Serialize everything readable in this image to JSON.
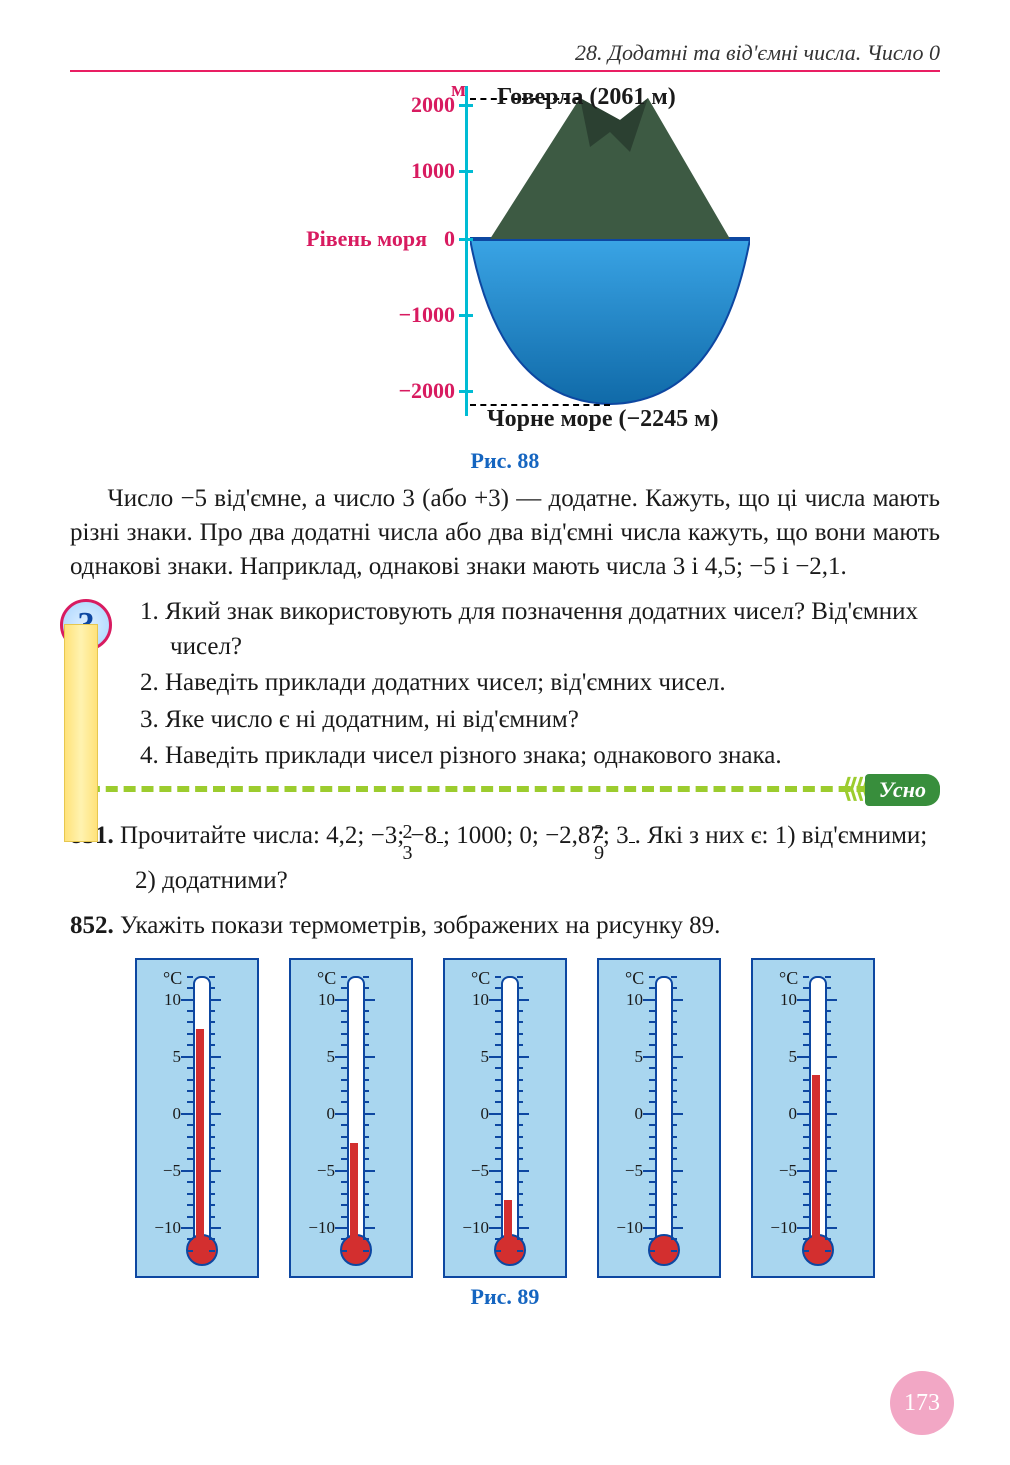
{
  "header": {
    "chapter_title": "28. Додатні та від'ємні числа. Число 0"
  },
  "mountain_chart": {
    "type": "area/schematic",
    "axis_label": "м",
    "sea_level_label": "Рівень моря",
    "peak_label": "Говерла (2061 м)",
    "floor_label": "Чорне море (−2245 м)",
    "ticks": [
      {
        "y": 2000,
        "label": "2000"
      },
      {
        "y": 1000,
        "label": "1000"
      },
      {
        "y": 0,
        "label": "0"
      },
      {
        "y": -1000,
        "label": "−1000"
      },
      {
        "y": -2000,
        "label": "−2000"
      }
    ],
    "ylim": [
      -2400,
      2200
    ],
    "axis_color": "#00bcd4",
    "tick_label_color": "#d81b60",
    "title_fontsize": 24,
    "tick_fontsize": 22,
    "mountain_fill_top_color": "#3d5a43",
    "mountain_fill_shade_color": "#2b4031",
    "sea_fill_top_color": "#3aa4e5",
    "sea_fill_bottom_color": "#106aa8",
    "caption": "Рис. 88"
  },
  "paragraph": "Число −5 від'ємне, а число 3 (або +3) — додатне. Кажуть, що ці числа мають різні знаки. Про два додатні числа або два від'ємні числа кажуть, що вони мають однакові знаки. Наприклад, однакові знаки мають числа 3 і 4,5; −5 і −2,1.",
  "questions": [
    "1. Який знак використовують для позначення додатних чисел? Від'ємних чисел?",
    "2. Наведіть приклади додатних чисел; від'ємних чисел.",
    "3. Яке число є ні додатним, ні від'ємним?",
    "4. Наведіть приклади чисел різного знака; однакового знака."
  ],
  "tag_label": "Усно",
  "ex851": {
    "num": "851.",
    "lead": "Прочитайте числа: ",
    "values": [
      "4,2",
      "−3",
      "−8⅔",
      "1000",
      "0",
      "−2,87",
      "3 2/9"
    ],
    "tail": ". Які з них є: 1) від'ємними; 2) додатними?"
  },
  "ex852": {
    "num": "852.",
    "text": "Укажіть покази термометрів, зображених на рисунку 89."
  },
  "thermometers": {
    "type": "infographic",
    "caption": "Рис. 89",
    "background_color": "#a9d6ef",
    "border_color": "#0d47a1",
    "tube_color": "#ffffff",
    "mercury_color": "#d32f2f",
    "unit_label": "°C",
    "scale_min": -12,
    "scale_max": 12,
    "major_ticks": [
      10,
      5,
      0,
      -5,
      -10
    ],
    "items": [
      {
        "reading": 7
      },
      {
        "reading": -3
      },
      {
        "reading": -8
      },
      {
        "reading": -12
      },
      {
        "reading": 3
      }
    ]
  },
  "page_number": "173"
}
